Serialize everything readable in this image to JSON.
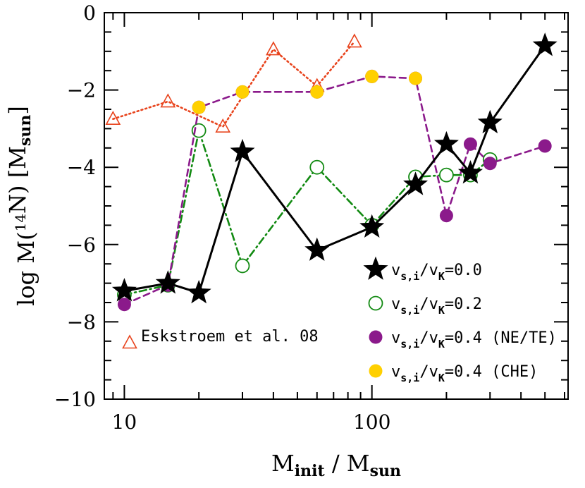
{
  "chart_data": {
    "type": "line",
    "title": "",
    "xlabel": "M_init / M_sun",
    "ylabel": "log M(14N) [M_sun]",
    "xscale": "log",
    "xlim": [
      8.3,
      620
    ],
    "ylim": [
      -10,
      0
    ],
    "x_ticks": [
      10,
      100
    ],
    "y_ticks": [
      0,
      -2,
      -4,
      -6,
      -8,
      -10
    ],
    "grid": false,
    "legend_position": "bottom-right",
    "series": [
      {
        "name": "v_s,i/v_K=0.0",
        "color": "#000000",
        "line_style": "solid",
        "marker": "filled-star",
        "points": [
          {
            "x": 10,
            "y": -7.2
          },
          {
            "x": 15,
            "y": -7.0
          },
          {
            "x": 20,
            "y": -7.25
          },
          {
            "x": 30,
            "y": -3.6
          },
          {
            "x": 60,
            "y": -6.15
          },
          {
            "x": 100,
            "y": -5.55
          },
          {
            "x": 150,
            "y": -4.45
          },
          {
            "x": 200,
            "y": -3.4
          },
          {
            "x": 250,
            "y": -4.15
          },
          {
            "x": 300,
            "y": -2.85
          },
          {
            "x": 500,
            "y": -0.85
          }
        ]
      },
      {
        "name": "v_s,i/v_K=0.2",
        "color": "#128a12",
        "line_style": "dashdot",
        "marker": "open-circle",
        "points": [
          {
            "x": 10,
            "y": -7.3
          },
          {
            "x": 15,
            "y": -7.05
          },
          {
            "x": 20,
            "y": -3.05
          },
          {
            "x": 30,
            "y": -6.55
          },
          {
            "x": 60,
            "y": -4.0
          },
          {
            "x": 100,
            "y": -5.5
          },
          {
            "x": 150,
            "y": -4.25
          },
          {
            "x": 200,
            "y": -4.2
          },
          {
            "x": 250,
            "y": -4.2
          },
          {
            "x": 300,
            "y": -3.8
          }
        ]
      },
      {
        "name": "v_s,i/v_K=0.4 (NE/TE)",
        "color": "#8b1a8b",
        "line_style": "dashed",
        "marker": "filled-circle",
        "points": [
          {
            "x": 10,
            "y": -7.55
          },
          {
            "x": 15,
            "y": -7.05
          },
          {
            "x": 20,
            "y": -2.45
          },
          {
            "x": 30,
            "y": -2.05
          },
          {
            "x": 60,
            "y": -2.05
          },
          {
            "x": 100,
            "y": -1.65
          },
          {
            "x": 150,
            "y": -1.7
          },
          {
            "x": 200,
            "y": -5.25
          },
          {
            "x": 250,
            "y": -3.4
          },
          {
            "x": 300,
            "y": -3.9
          },
          {
            "x": 500,
            "y": -3.45
          }
        ]
      },
      {
        "name": "v_s,i/v_K=0.4 (CHE)",
        "color": "#ffd000",
        "line_style": "none",
        "marker": "filled-circle",
        "points": [
          {
            "x": 20,
            "y": -2.45
          },
          {
            "x": 30,
            "y": -2.05
          },
          {
            "x": 60,
            "y": -2.05
          },
          {
            "x": 100,
            "y": -1.65
          },
          {
            "x": 150,
            "y": -1.7
          }
        ]
      },
      {
        "name": "Eskstroem et al. 08",
        "color": "#e8431c",
        "line_style": "dotted",
        "marker": "open-triangle",
        "points": [
          {
            "x": 9,
            "y": -2.75
          },
          {
            "x": 15,
            "y": -2.3
          },
          {
            "x": 25,
            "y": -2.95
          },
          {
            "x": 40,
            "y": -0.95
          },
          {
            "x": 60,
            "y": -1.9
          },
          {
            "x": 85,
            "y": -0.75
          }
        ]
      }
    ],
    "legend": [
      {
        "label": "v_s,i/v_K=0.0",
        "series": 0
      },
      {
        "label": "v_s,i/v_K=0.2",
        "series": 1
      },
      {
        "label": "v_s,i/v_K=0.4 (NE/TE)",
        "series": 2
      },
      {
        "label": "v_s,i/v_K=0.4 (CHE)",
        "series": 3
      }
    ],
    "annotation": {
      "label": "Eskstroem et al. 08",
      "series": 4
    }
  }
}
